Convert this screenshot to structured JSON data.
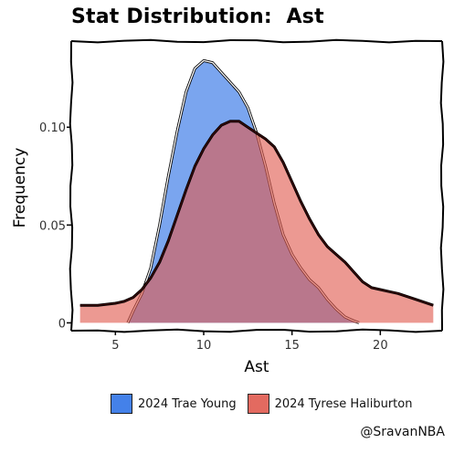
{
  "chart_data": {
    "type": "area",
    "title": "Stat Distribution:  Ast",
    "xlabel": "Ast",
    "ylabel": "Frequency",
    "xlim": [
      2.5,
      23.5
    ],
    "ylim": [
      -0.004,
      0.144
    ],
    "x_ticks": [
      5,
      10,
      15,
      20
    ],
    "y_ticks": [
      0,
      0.05,
      0.1
    ],
    "y_tick_labels": [
      "0",
      "0.05",
      "0.10"
    ],
    "grid": false,
    "legend_position": "bottom",
    "series": [
      {
        "name": "2024 Trae Young",
        "color": "#3b7be8",
        "x": [
          5.7,
          6.0,
          6.5,
          7.0,
          7.5,
          8.0,
          8.5,
          9.0,
          9.5,
          10.0,
          10.5,
          11.0,
          11.5,
          12.0,
          12.5,
          13.0,
          13.5,
          14.0,
          14.5,
          15.0,
          15.5,
          16.0,
          16.5,
          17.0,
          17.5,
          18.0,
          18.5,
          18.8
        ],
        "y": [
          0.0,
          0.006,
          0.015,
          0.028,
          0.05,
          0.075,
          0.098,
          0.118,
          0.13,
          0.134,
          0.133,
          0.128,
          0.123,
          0.118,
          0.11,
          0.097,
          0.08,
          0.061,
          0.045,
          0.035,
          0.028,
          0.022,
          0.018,
          0.012,
          0.007,
          0.003,
          0.001,
          0.0
        ]
      },
      {
        "name": "2024 Tyrese Haliburton",
        "color": "#e05a4f",
        "x": [
          3.0,
          4.0,
          5.0,
          5.5,
          6.0,
          6.5,
          7.0,
          7.5,
          8.0,
          8.5,
          9.0,
          9.5,
          10.0,
          10.5,
          11.0,
          11.5,
          12.0,
          12.5,
          13.0,
          13.5,
          14.0,
          14.5,
          15.0,
          15.5,
          16.0,
          16.5,
          17.0,
          17.5,
          18.0,
          18.5,
          19.0,
          19.5,
          20.0,
          20.5,
          21.0,
          22.0,
          23.0
        ],
        "y": [
          0.009,
          0.009,
          0.01,
          0.011,
          0.013,
          0.017,
          0.023,
          0.031,
          0.042,
          0.055,
          0.068,
          0.08,
          0.089,
          0.096,
          0.101,
          0.103,
          0.103,
          0.1,
          0.097,
          0.094,
          0.09,
          0.082,
          0.072,
          0.062,
          0.053,
          0.045,
          0.039,
          0.035,
          0.031,
          0.026,
          0.021,
          0.018,
          0.017,
          0.016,
          0.015,
          0.012,
          0.009
        ]
      }
    ]
  },
  "legend": {
    "items": [
      {
        "label": "2024 Trae Young",
        "color": "#3b7be8"
      },
      {
        "label": "2024 Tyrese Haliburton",
        "color": "#e05a4f"
      }
    ]
  },
  "credit": "@SravanNBA"
}
